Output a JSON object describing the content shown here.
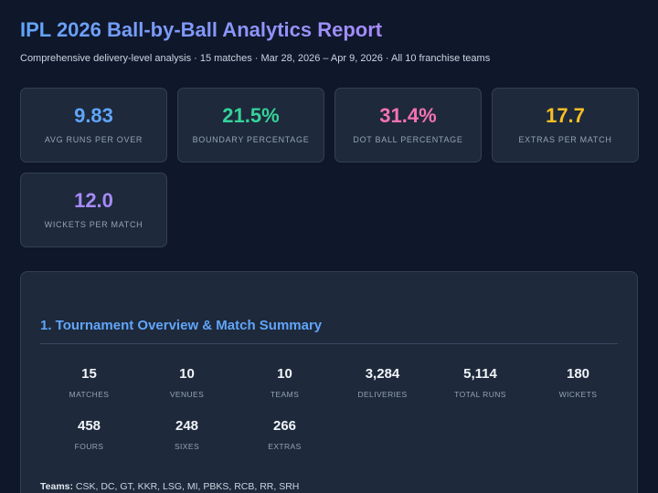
{
  "header": {
    "title": "IPL 2026 Ball-by-Ball Analytics Report",
    "subtitle": "Comprehensive delivery-level analysis · 15 matches · Mar 28, 2026 – Apr 9, 2026 · All 10 franchise teams"
  },
  "kpis": [
    {
      "value": "9.83",
      "label": "AVG RUNS PER OVER",
      "color": "#60a5fa"
    },
    {
      "value": "21.5%",
      "label": "BOUNDARY PERCENTAGE",
      "color": "#34d399"
    },
    {
      "value": "31.4%",
      "label": "DOT BALL PERCENTAGE",
      "color": "#f472b6"
    },
    {
      "value": "17.7",
      "label": "EXTRAS PER MATCH",
      "color": "#fbbf24"
    },
    {
      "value": "12.0",
      "label": "WICKETS PER MATCH",
      "color": "#a78bfa"
    }
  ],
  "overview": {
    "title": "1. Tournament Overview & Match Summary",
    "stats": [
      {
        "value": "15",
        "label": "MATCHES"
      },
      {
        "value": "10",
        "label": "VENUES"
      },
      {
        "value": "10",
        "label": "TEAMS"
      },
      {
        "value": "3,284",
        "label": "DELIVERIES"
      },
      {
        "value": "5,114",
        "label": "TOTAL RUNS"
      },
      {
        "value": "180",
        "label": "WICKETS"
      },
      {
        "value": "458",
        "label": "FOURS"
      },
      {
        "value": "248",
        "label": "SIXES"
      },
      {
        "value": "266",
        "label": "EXTRAS"
      }
    ],
    "teams_label": "Teams:",
    "teams_value": "CSK, DC, GT, KKR, LSG, MI, PBKS, RCB, RR, SRH"
  }
}
